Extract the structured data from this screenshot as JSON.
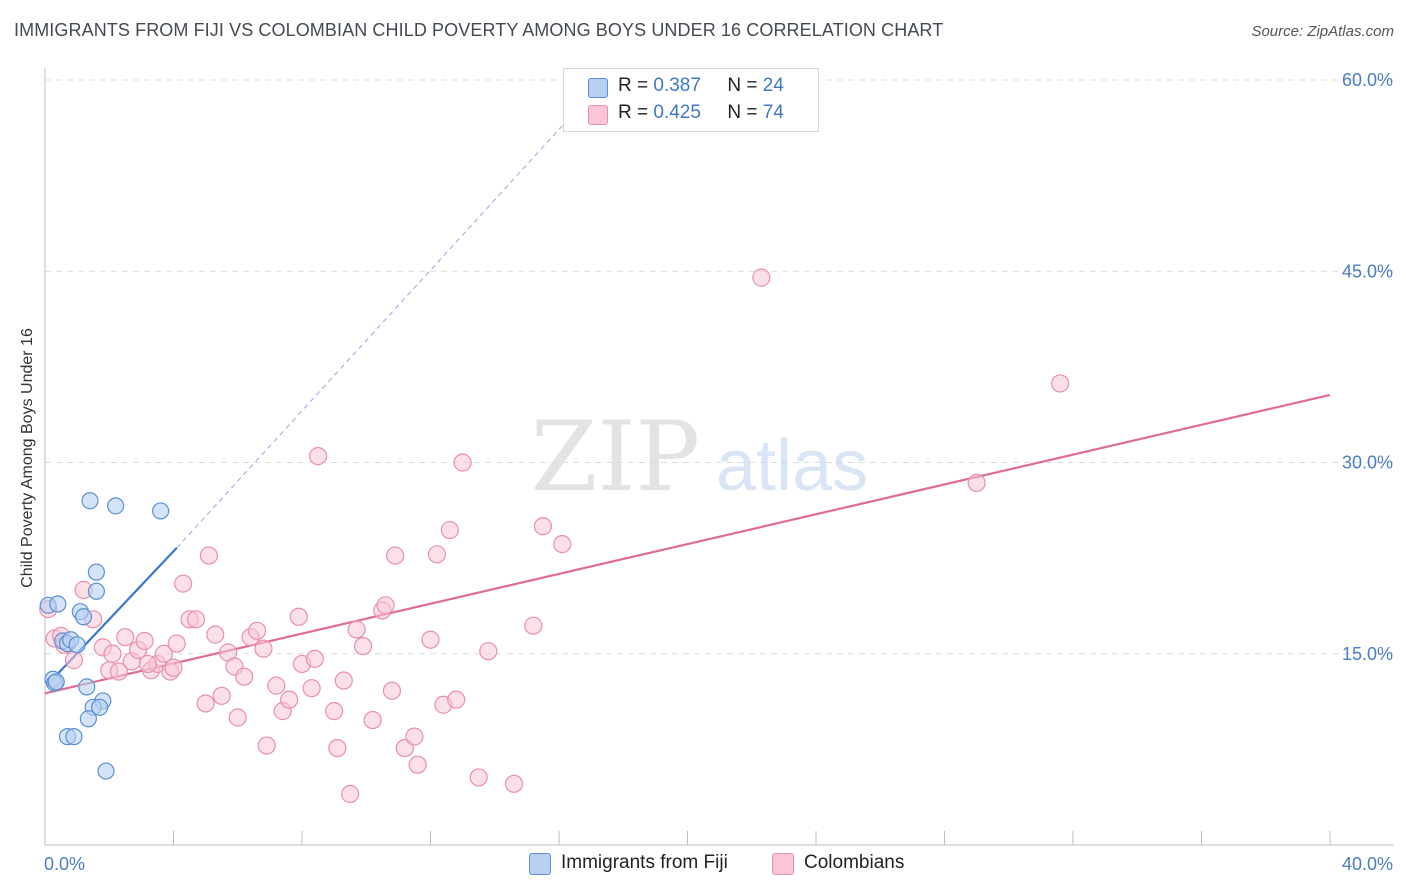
{
  "title": "IMMIGRANTS FROM FIJI VS COLOMBIAN CHILD POVERTY AMONG BOYS UNDER 16 CORRELATION CHART",
  "source": "Source: ZipAtlas.com",
  "watermark": "ZIPatlas",
  "colors": {
    "fiji_fill": "#b8d0f2",
    "fiji_stroke": "#5b8fd6",
    "fiji_line": "#3a78d0",
    "col_fill": "#f8c6d6",
    "col_stroke": "#e890ab",
    "col_line": "#e06b96",
    "axis_text": "#4a7cc4"
  },
  "legend_top": {
    "fiji": {
      "r_label": "R =",
      "r_value": "0.387",
      "n_label": "N =",
      "n_value": "24"
    },
    "colombians": {
      "r_label": "R =",
      "r_value": "0.425",
      "n_label": "N =",
      "n_value": "74"
    }
  },
  "legend_bottom": {
    "fiji": "Immigrants from Fiji",
    "colombians": "Colombians"
  },
  "chart_data": {
    "type": "scatter",
    "xlabel": "",
    "ylabel": "Child Poverty Among Boys Under 16",
    "xlim": [
      0,
      40
    ],
    "ylim": [
      0,
      60
    ],
    "x_tick_labels": [
      {
        "value": 0,
        "label": "0.0%"
      },
      {
        "value": 40,
        "label": "40.0%"
      }
    ],
    "y_tick_labels": [
      {
        "value": 15,
        "label": "15.0%"
      },
      {
        "value": 30,
        "label": "30.0%"
      },
      {
        "value": 45,
        "label": "45.0%"
      },
      {
        "value": 60,
        "label": "60.0%"
      }
    ],
    "grid": "horizontal dashed",
    "legend_placement": "top-center and bottom",
    "series": [
      {
        "name": "Immigrants from Fiji",
        "r": 0.387,
        "n": 24,
        "trend": {
          "x0": 0.05,
          "y0": 12.5,
          "x1": 4.1,
          "y1": 23.3
        },
        "trend_extension": {
          "x0": 4.1,
          "y0": 23.3,
          "x1": 16.5,
          "y1": 57.5
        },
        "points": [
          [
            0.1,
            18.8
          ],
          [
            0.4,
            18.9
          ],
          [
            0.25,
            13.0
          ],
          [
            0.3,
            12.7
          ],
          [
            0.35,
            12.8
          ],
          [
            0.55,
            16.0
          ],
          [
            0.7,
            15.8
          ],
          [
            1.1,
            18.3
          ],
          [
            1.2,
            17.9
          ],
          [
            0.8,
            16.1
          ],
          [
            1.0,
            15.7
          ],
          [
            1.6,
            21.4
          ],
          [
            1.6,
            19.9
          ],
          [
            1.3,
            12.4
          ],
          [
            1.8,
            11.3
          ],
          [
            1.5,
            10.8
          ],
          [
            1.7,
            10.8
          ],
          [
            1.35,
            9.9
          ],
          [
            0.7,
            8.5
          ],
          [
            0.9,
            8.5
          ],
          [
            1.4,
            27.0
          ],
          [
            2.2,
            26.6
          ],
          [
            3.6,
            26.2
          ],
          [
            1.9,
            5.8
          ]
        ]
      },
      {
        "name": "Colombians",
        "r": 0.425,
        "n": 74,
        "trend": {
          "x0": 0.0,
          "y0": 11.9,
          "x1": 40.0,
          "y1": 35.3
        },
        "points": [
          [
            0.1,
            18.5
          ],
          [
            0.3,
            16.2
          ],
          [
            0.5,
            16.4
          ],
          [
            0.6,
            15.7
          ],
          [
            0.9,
            14.5
          ],
          [
            1.2,
            20.0
          ],
          [
            1.5,
            17.7
          ],
          [
            1.8,
            15.5
          ],
          [
            2.0,
            13.7
          ],
          [
            2.3,
            13.6
          ],
          [
            2.5,
            16.3
          ],
          [
            2.7,
            14.4
          ],
          [
            2.9,
            15.3
          ],
          [
            3.1,
            16.0
          ],
          [
            3.3,
            13.7
          ],
          [
            3.5,
            14.2
          ],
          [
            3.7,
            15.0
          ],
          [
            3.9,
            13.6
          ],
          [
            4.1,
            15.8
          ],
          [
            4.3,
            20.5
          ],
          [
            4.5,
            17.7
          ],
          [
            4.7,
            17.7
          ],
          [
            5.0,
            11.1
          ],
          [
            5.1,
            22.7
          ],
          [
            5.3,
            16.5
          ],
          [
            5.5,
            11.7
          ],
          [
            5.7,
            15.1
          ],
          [
            5.9,
            14.0
          ],
          [
            6.0,
            10.0
          ],
          [
            6.2,
            13.2
          ],
          [
            6.4,
            16.3
          ],
          [
            6.6,
            16.8
          ],
          [
            6.8,
            15.4
          ],
          [
            6.9,
            7.8
          ],
          [
            7.2,
            12.5
          ],
          [
            7.4,
            10.5
          ],
          [
            7.6,
            11.4
          ],
          [
            7.9,
            17.9
          ],
          [
            8.0,
            14.2
          ],
          [
            8.3,
            12.3
          ],
          [
            8.4,
            14.6
          ],
          [
            8.5,
            30.5
          ],
          [
            9.0,
            10.5
          ],
          [
            9.1,
            7.6
          ],
          [
            9.3,
            12.9
          ],
          [
            9.5,
            4.0
          ],
          [
            9.7,
            16.9
          ],
          [
            9.9,
            15.6
          ],
          [
            10.2,
            9.8
          ],
          [
            10.5,
            18.4
          ],
          [
            10.6,
            18.8
          ],
          [
            10.8,
            12.1
          ],
          [
            10.9,
            22.7
          ],
          [
            11.2,
            7.6
          ],
          [
            11.5,
            8.5
          ],
          [
            11.6,
            6.3
          ],
          [
            12.0,
            16.1
          ],
          [
            12.2,
            22.8
          ],
          [
            12.4,
            11.0
          ],
          [
            12.6,
            24.7
          ],
          [
            12.8,
            11.4
          ],
          [
            13.0,
            30.0
          ],
          [
            13.5,
            5.3
          ],
          [
            13.8,
            15.2
          ],
          [
            14.6,
            4.8
          ],
          [
            15.2,
            17.2
          ],
          [
            15.5,
            25.0
          ],
          [
            16.1,
            23.6
          ],
          [
            22.3,
            44.5
          ],
          [
            29.0,
            28.4
          ],
          [
            31.6,
            36.2
          ],
          [
            2.1,
            15.0
          ],
          [
            3.2,
            14.2
          ],
          [
            4.0,
            13.9
          ]
        ]
      }
    ]
  }
}
